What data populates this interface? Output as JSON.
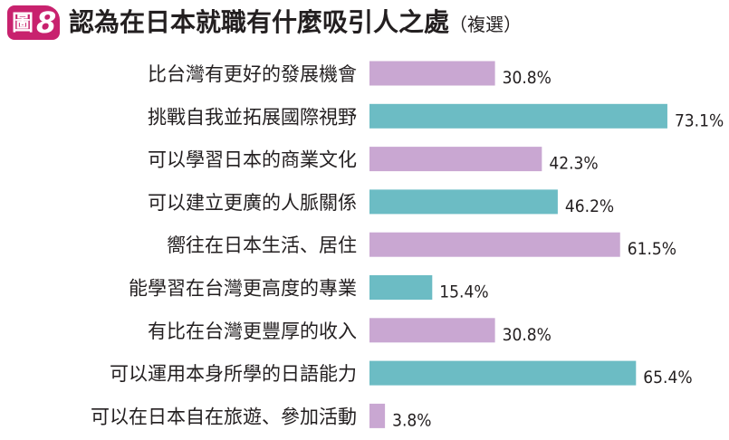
{
  "badge": {
    "char": "圖",
    "number": "8",
    "color": "#c8226e"
  },
  "chart_data": {
    "type": "bar",
    "orientation": "horizontal",
    "title": "認為在日本就職有什麼吸引人之處",
    "subtitle": "（複選）",
    "categories": [
      "比台灣有更好的發展機會",
      "挑戰自我並拓展國際視野",
      "可以學習日本的商業文化",
      "可以建立更廣的人脈關係",
      "嚮往在日本生活、居住",
      "能學習在台灣更高度的專業",
      "有比在台灣更豐厚的收入",
      "可以運用本身所學的日語能力",
      "可以在日本自在旅遊、參加活動"
    ],
    "values": [
      30.8,
      73.1,
      42.3,
      46.2,
      61.5,
      15.4,
      30.8,
      65.4,
      3.8
    ],
    "value_labels": [
      "30.8%",
      "73.1%",
      "42.3%",
      "46.2%",
      "61.5%",
      "15.4%",
      "30.8%",
      "65.4%",
      "3.8%"
    ],
    "bar_colors": [
      "#c9a7d2",
      "#6cbcc4",
      "#c9a7d2",
      "#6cbcc4",
      "#c9a7d2",
      "#6cbcc4",
      "#c9a7d2",
      "#6cbcc4",
      "#c9a7d2"
    ],
    "xlim": [
      0,
      100
    ],
    "grid": false,
    "legend": "none"
  }
}
